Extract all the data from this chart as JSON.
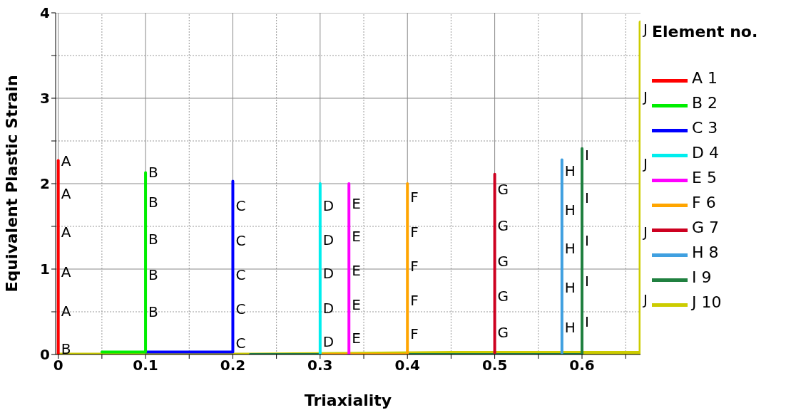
{
  "chart_data": {
    "type": "line",
    "xlabel": "Triaxiality",
    "ylabel": "Equivalent Plastic Strain",
    "legend_title": "Element no.",
    "legend": "right",
    "grid": true,
    "line_style": "solid",
    "marker": "none",
    "xlim": [
      -0.003,
      0.667
    ],
    "ylim": [
      0,
      4
    ],
    "xticks": [
      0,
      {
        "value": 0.05,
        "label": null
      },
      0.1,
      {
        "value": 0.15,
        "label": null
      },
      0.2,
      {
        "value": 0.25,
        "label": null
      },
      0.3,
      {
        "value": 0.35,
        "label": null
      },
      0.4,
      {
        "value": 0.45,
        "label": null
      },
      0.5,
      {
        "value": 0.55,
        "label": null
      },
      0.6,
      {
        "value": 0.65,
        "label": null
      }
    ],
    "yticks": [
      0,
      {
        "value": 0.5,
        "label": null
      },
      1,
      {
        "value": 1.5,
        "label": null
      },
      2,
      {
        "value": 2.5,
        "label": null
      },
      3,
      {
        "value": 3.5,
        "label": null
      },
      4
    ],
    "series": [
      {
        "name": "A 1",
        "color": "#ff0000",
        "x": [
          0,
          0,
          0,
          0,
          0,
          0,
          0,
          0
        ],
        "values": [
          0,
          0.07,
          0.51,
          0.97,
          1.3,
          1.43,
          1.88,
          2.27
        ],
        "value_labels": [
          null,
          "B",
          "A",
          "A",
          null,
          "A",
          "A",
          "A"
        ]
      },
      {
        "name": "B 2",
        "color": "#00ee00",
        "x": [
          0.05,
          0.1,
          0.1,
          0.1,
          0.1,
          0.1,
          0.1
        ],
        "values": [
          0.03,
          0.03,
          0.5,
          0.93,
          1.35,
          1.78,
          2.13
        ],
        "value_labels": [
          null,
          null,
          "B",
          "B",
          "B",
          "B",
          "B"
        ]
      },
      {
        "name": "C 3",
        "color": "#0000ff",
        "x": [
          0.1,
          0.2,
          0.2,
          0.2,
          0.2,
          0.2,
          0.2,
          0.2
        ],
        "values": [
          0.03,
          0.03,
          0.13,
          0.53,
          0.93,
          1.33,
          1.74,
          2.03
        ],
        "value_labels": [
          null,
          null,
          "C",
          "C",
          "C",
          "C",
          "C",
          null
        ]
      },
      {
        "name": "D 4",
        "color": "#00eeee",
        "x": [
          0.3,
          0.3,
          0.3,
          0.3,
          0.3,
          0.3,
          0.3
        ],
        "values": [
          0,
          0.15,
          0.54,
          0.95,
          1.34,
          1.74,
          2.0
        ],
        "value_labels": [
          null,
          "D",
          "D",
          "D",
          "D",
          "D",
          null
        ]
      },
      {
        "name": "E 5",
        "color": "#ff00ff",
        "x": [
          0.333,
          0.333,
          0.333,
          0.333,
          0.333,
          0.333,
          0.333
        ],
        "values": [
          0,
          0.19,
          0.58,
          0.98,
          1.38,
          1.77,
          2.0
        ],
        "value_labels": [
          null,
          "E",
          "E",
          "E",
          "E",
          "E",
          null
        ]
      },
      {
        "name": "F 6",
        "color": "#ffa500",
        "x": [
          0.3,
          0.4,
          0.4,
          0.4,
          0.4,
          0.4,
          0.4,
          0.4
        ],
        "values": [
          0,
          0,
          0.24,
          0.63,
          1.03,
          1.43,
          1.84,
          2.0
        ],
        "value_labels": [
          null,
          null,
          "F",
          "F",
          "F",
          "F",
          "F",
          null
        ]
      },
      {
        "name": "G 7",
        "color": "#cd0020",
        "x": [
          0.5,
          0.5,
          0.5,
          0.5,
          0.5,
          0.5,
          0.5
        ],
        "values": [
          0.02,
          0.26,
          0.68,
          1.09,
          1.51,
          1.93,
          2.11
        ],
        "value_labels": [
          null,
          "G",
          "G",
          "G",
          "G",
          "G",
          null
        ]
      },
      {
        "name": "H 8",
        "color": "#40a0e0",
        "x": [
          0.577,
          0.577,
          0.577,
          0.577,
          0.577,
          0.577,
          0.577
        ],
        "values": [
          0.02,
          0.32,
          0.78,
          1.24,
          1.69,
          2.15,
          2.28
        ],
        "value_labels": [
          null,
          "H",
          "H",
          "H",
          "H",
          "H",
          null
        ]
      },
      {
        "name": "I 9",
        "color": "#208040",
        "x": [
          0.22,
          0.3,
          0.45,
          0.6,
          0.6,
          0.6,
          0.6,
          0.6,
          0.6,
          0.6
        ],
        "values": [
          0,
          0,
          0,
          0,
          0.38,
          0.86,
          1.33,
          1.83,
          2.33,
          2.41
        ],
        "value_labels": [
          null,
          null,
          null,
          null,
          "I",
          "I",
          "I",
          "I",
          "I",
          null
        ]
      },
      {
        "name": "J 10",
        "color": "#cccc00",
        "x": [
          0,
          0.22,
          0.45,
          0.667,
          0.667,
          0.667,
          0.667,
          0.667,
          0.667,
          0.667
        ],
        "values": [
          0,
          0,
          0.02,
          0.02,
          0.64,
          1.43,
          2.23,
          3.02,
          3.81,
          3.89
        ],
        "value_labels": [
          null,
          null,
          null,
          null,
          "J",
          "J",
          "J",
          "J",
          "J",
          null
        ]
      }
    ]
  }
}
